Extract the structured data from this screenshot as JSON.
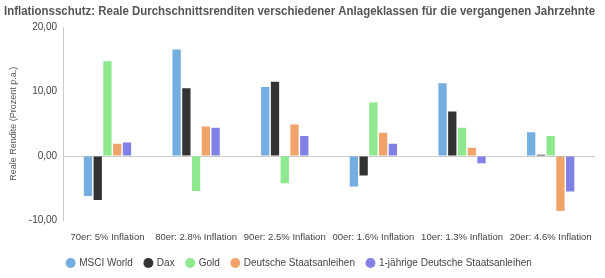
{
  "chart_data": {
    "type": "bar",
    "title": "Inflationsschutz: Reale Durchschnittsrenditen verschiedener Anlageklassen für die vergangenen Jahrzehnte",
    "y_label": "Reale Rendite (Prozent p.a.)",
    "categories": [
      "70er: 5% Inflation",
      "80er: 2.8% Inflation",
      "90er: 2.5% Inflation",
      "00er: 1.6% Inflation",
      "10er: 1.3% Inflation",
      "20er: 4.6% Inflation"
    ],
    "series": [
      {
        "name": "MSCI World",
        "color": "#74ade0",
        "values": [
          -6.2,
          16.5,
          10.7,
          -4.7,
          11.3,
          3.7
        ]
      },
      {
        "name": "Dax",
        "color": "#333333",
        "values": [
          -6.8,
          10.5,
          11.5,
          -3.0,
          6.9,
          0.2
        ]
      },
      {
        "name": "Gold",
        "color": "#8ee88e",
        "values": [
          14.7,
          -5.4,
          -4.2,
          8.3,
          4.4,
          3.1
        ]
      },
      {
        "name": "Deutsche Staatsanleihen",
        "color": "#f0a46a",
        "values": [
          1.9,
          4.6,
          4.9,
          3.6,
          1.3,
          -8.5
        ]
      },
      {
        "name": "1-jährige Deutsche Staatsanleihen",
        "color": "#8080e6",
        "values": [
          2.1,
          4.4,
          3.1,
          1.9,
          -1.1,
          -5.5
        ]
      }
    ],
    "ylim": [
      -10,
      20
    ],
    "yticks": [
      {
        "value": -10,
        "label": "-10,00"
      },
      {
        "value": 0,
        "label": "0,00"
      },
      {
        "value": 10,
        "label": "10,00"
      },
      {
        "value": 20,
        "label": "20,00"
      }
    ],
    "grid": false,
    "legend": "bottom"
  }
}
